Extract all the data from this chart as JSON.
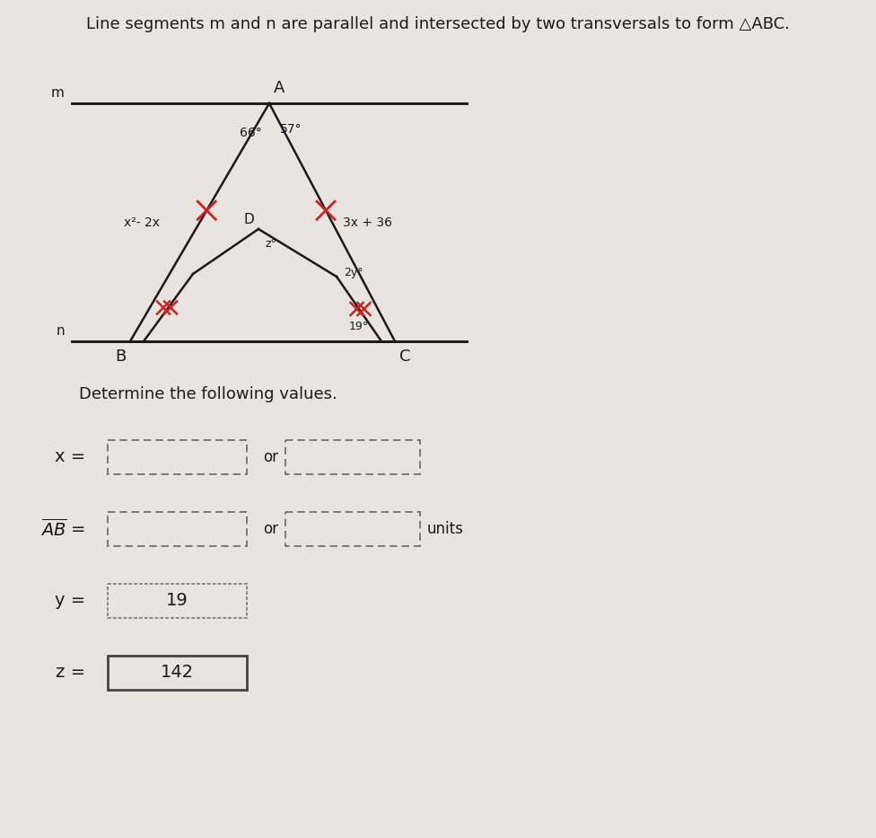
{
  "title": "Line segments m and n are parallel and intersected by two transversals to form △ABC.",
  "subtitle": "Determine the following values.",
  "bg_color": "#e8e5e0",
  "text_color": "#1a1a1a",
  "diagram": {
    "line_color": "#1a1a1a",
    "line_width": 1.8,
    "angle_57": "57°",
    "angle_66": "66°",
    "angle_19": "19°",
    "angle_z": "z°",
    "angle_2y": "2y°",
    "label_x2_2x": "x²- 2x",
    "label_3x36": "3x + 36",
    "label_A": "A",
    "label_B": "B",
    "label_C": "C",
    "label_D": "D",
    "label_m": "m",
    "label_n": "n",
    "tick_color": "#cc2222"
  },
  "answers": {
    "x_label": "x =",
    "x_or": "or",
    "AB_label": "AB =",
    "AB_or": "or",
    "AB_units": "units",
    "y_label": "y =",
    "y_value": "19",
    "z_label": "z =",
    "z_value": "142"
  }
}
